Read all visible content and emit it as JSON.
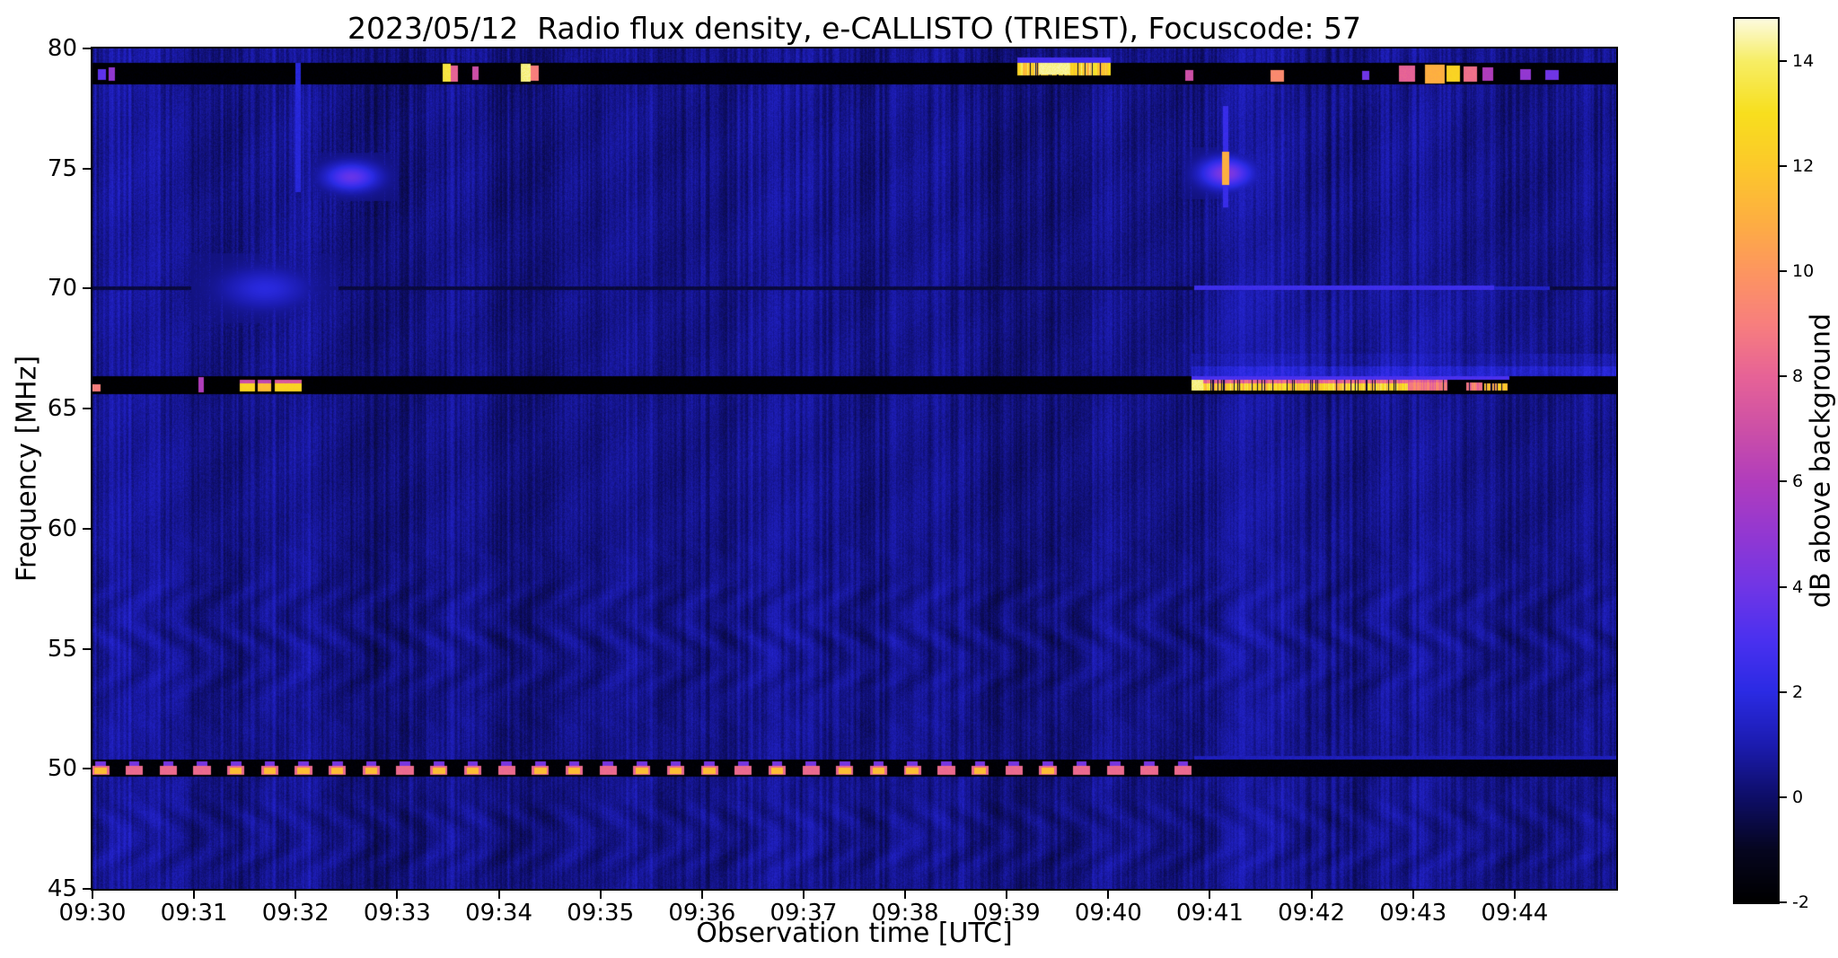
{
  "chart_data": {
    "type": "heatmap",
    "title": "2023/05/12  Radio flux density, e-CALLISTO (TRIEST), Focuscode: 57",
    "xlabel": "Observation time [UTC]",
    "ylabel": "Frequency [MHz]",
    "colorbar_label": "dB above background",
    "x_range_minutes": [
      0,
      15
    ],
    "x_tick_minutes": [
      0,
      1,
      2,
      3,
      4,
      5,
      6,
      7,
      8,
      9,
      10,
      11,
      12,
      13,
      14
    ],
    "x_tick_labels": [
      "09:30",
      "09:31",
      "09:32",
      "09:33",
      "09:34",
      "09:35",
      "09:36",
      "09:37",
      "09:38",
      "09:39",
      "09:40",
      "09:41",
      "09:42",
      "09:43",
      "09:44"
    ],
    "y_range_mhz": [
      45,
      80
    ],
    "y_tick_values": [
      45,
      50,
      55,
      60,
      65,
      70,
      75,
      80
    ],
    "y_tick_labels": [
      "45",
      "50",
      "55",
      "60",
      "65",
      "70",
      "75",
      "80"
    ],
    "colorbar_range_db": [
      -2,
      14.8
    ],
    "colorbar_tick_values": [
      -2,
      0,
      2,
      4,
      6,
      8,
      10,
      12,
      14
    ],
    "colorbar_tick_labels": [
      "-2",
      "0",
      "2",
      "4",
      "6",
      "8",
      "10",
      "12",
      "14"
    ],
    "background_level_db": 0.45,
    "colormap_stops": [
      [
        -2,
        "#000000"
      ],
      [
        -1,
        "#060620"
      ],
      [
        0,
        "#0e0e68"
      ],
      [
        1,
        "#1c1cb0"
      ],
      [
        2,
        "#2b2be4"
      ],
      [
        3,
        "#4b31f0"
      ],
      [
        4,
        "#7136e6"
      ],
      [
        5,
        "#9338d2"
      ],
      [
        6,
        "#b13dbd"
      ],
      [
        7,
        "#cd50a7"
      ],
      [
        8,
        "#e76397"
      ],
      [
        9,
        "#f87f7e"
      ],
      [
        10,
        "#fd9660"
      ],
      [
        11,
        "#feb041"
      ],
      [
        12,
        "#fcc92b"
      ],
      [
        13,
        "#f8df1e"
      ],
      [
        14,
        "#f7ee66"
      ],
      [
        14.8,
        "#fdfbe0"
      ]
    ],
    "bands": [
      {
        "f0": 78.5,
        "f1": 79.42,
        "v": -1.85,
        "name": "rfi-notch-79mhz"
      },
      {
        "f0": 69.93,
        "f1": 70.08,
        "v": -0.55,
        "name": "line-70mhz"
      },
      {
        "f0": 65.62,
        "f1": 66.34,
        "v": -1.9,
        "name": "rfi-notch-66mhz"
      },
      {
        "f0": 49.66,
        "f1": 50.38,
        "v": -1.8,
        "name": "rfi-notch-50mhz"
      }
    ],
    "regions": [
      {
        "t0": 10.82,
        "t1": 15,
        "f0": 66.34,
        "f1": 66.75,
        "v_add": 1.1
      },
      {
        "t0": 10.82,
        "t1": 15,
        "f0": 66.75,
        "f1": 67.3,
        "v_add": 0.45
      },
      {
        "t0": 10.85,
        "t1": 14.2,
        "f0": 67.3,
        "f1": 69.9,
        "v_add": 0.2
      }
    ],
    "features": [
      {
        "t0": 0.05,
        "t1": 0.13,
        "f0": 78.7,
        "f1": 79.15,
        "v": 3.5
      },
      {
        "t0": 0.16,
        "t1": 0.22,
        "f0": 78.65,
        "f1": 79.2,
        "v": 5
      },
      {
        "t0": 3.45,
        "t1": 3.53,
        "f0": 78.6,
        "f1": 79.35,
        "v": 13.5
      },
      {
        "t0": 3.53,
        "t1": 3.6,
        "f0": 78.6,
        "f1": 79.3,
        "v": 8
      },
      {
        "t0": 3.74,
        "t1": 3.8,
        "f0": 78.7,
        "f1": 79.25,
        "v": 7
      },
      {
        "t0": 4.22,
        "t1": 4.31,
        "f0": 78.6,
        "f1": 79.38,
        "v": 14.2
      },
      {
        "t0": 4.31,
        "t1": 4.39,
        "f0": 78.65,
        "f1": 79.3,
        "v": 9
      },
      {
        "t0": 9.1,
        "t1": 10.02,
        "f0": 78.88,
        "f1": 79.42,
        "v": 12.5,
        "noisy": true
      },
      {
        "t0": 9.32,
        "t1": 9.62,
        "f0": 78.92,
        "f1": 79.42,
        "v": 14.3
      },
      {
        "t0": 9.1,
        "t1": 10.02,
        "f0": 79.42,
        "f1": 79.62,
        "v": 2.8
      },
      {
        "t0": 10.76,
        "t1": 10.84,
        "f0": 78.65,
        "f1": 79.1,
        "v": 7
      },
      {
        "t0": 11.6,
        "t1": 11.73,
        "f0": 78.6,
        "f1": 79.12,
        "v": 9.5
      },
      {
        "t0": 12.5,
        "t1": 12.57,
        "f0": 78.7,
        "f1": 79.05,
        "v": 4
      },
      {
        "t0": 12.86,
        "t1": 13.02,
        "f0": 78.6,
        "f1": 79.28,
        "v": 8
      },
      {
        "t0": 13.12,
        "t1": 13.31,
        "f0": 78.55,
        "f1": 79.32,
        "v": 11
      },
      {
        "t0": 13.33,
        "t1": 13.46,
        "f0": 78.6,
        "f1": 79.3,
        "v": 12.5
      },
      {
        "t0": 13.5,
        "t1": 13.63,
        "f0": 78.6,
        "f1": 79.25,
        "v": 8.5
      },
      {
        "t0": 13.68,
        "t1": 13.79,
        "f0": 78.65,
        "f1": 79.2,
        "v": 6
      },
      {
        "t0": 14.05,
        "t1": 14.16,
        "f0": 78.7,
        "f1": 79.15,
        "v": 5
      },
      {
        "t0": 14.3,
        "t1": 14.43,
        "f0": 78.7,
        "f1": 79.1,
        "v": 4
      },
      {
        "t0": 2.0,
        "t1": 2.05,
        "f0": 74.0,
        "f1": 79.4,
        "v": 1.8
      },
      {
        "t0": 2.3,
        "t1": 2.8,
        "f0": 74.1,
        "f1": 75.2,
        "v": 3.4,
        "soft": true
      },
      {
        "t0": 1.3,
        "t1": 2.1,
        "f0": 69.2,
        "f1": 70.8,
        "v": 1.6,
        "soft": true
      },
      {
        "t0": 10.92,
        "t1": 11.4,
        "f0": 74.2,
        "f1": 75.4,
        "v": 4.2,
        "soft": true
      },
      {
        "t0": 11.13,
        "t1": 11.18,
        "f0": 73.4,
        "f1": 77.6,
        "v": 2.4
      },
      {
        "t0": 11.12,
        "t1": 11.19,
        "f0": 74.3,
        "f1": 75.7,
        "v": 11
      },
      {
        "t0": 10.85,
        "t1": 13.8,
        "f0": 69.93,
        "f1": 70.14,
        "v": 2.6
      },
      {
        "t0": 13.8,
        "t1": 14.35,
        "f0": 69.95,
        "f1": 70.1,
        "v": 1.4
      },
      {
        "t0": 0.0,
        "t1": 0.08,
        "f0": 65.7,
        "f1": 66.0,
        "v": 9
      },
      {
        "t0": 1.04,
        "t1": 1.1,
        "f0": 65.68,
        "f1": 66.3,
        "v": 6
      },
      {
        "t0": 1.45,
        "t1": 1.6,
        "f0": 65.7,
        "f1": 66.06,
        "v": 12.5
      },
      {
        "t0": 1.45,
        "t1": 1.6,
        "f0": 66.06,
        "f1": 66.22,
        "v": 7
      },
      {
        "t0": 1.63,
        "t1": 1.76,
        "f0": 65.7,
        "f1": 66.06,
        "v": 11.5
      },
      {
        "t0": 1.63,
        "t1": 1.76,
        "f0": 66.06,
        "f1": 66.2,
        "v": 6.5
      },
      {
        "t0": 1.79,
        "t1": 2.06,
        "f0": 65.7,
        "f1": 66.06,
        "v": 12.5
      },
      {
        "t0": 1.79,
        "t1": 2.06,
        "f0": 66.06,
        "f1": 66.22,
        "v": 7.5
      },
      {
        "t0": 10.82,
        "t1": 13.34,
        "f0": 65.74,
        "f1": 66.06,
        "v": 12.4,
        "noisy": true
      },
      {
        "t0": 10.82,
        "t1": 13.34,
        "f0": 66.06,
        "f1": 66.2,
        "v": 8,
        "noisy": true
      },
      {
        "t0": 10.82,
        "t1": 13.95,
        "f0": 66.2,
        "f1": 66.34,
        "v": 3
      },
      {
        "t0": 10.82,
        "t1": 10.93,
        "f0": 65.74,
        "f1": 66.2,
        "v": 14.2
      },
      {
        "t0": 12.95,
        "t1": 13.34,
        "f0": 65.74,
        "f1": 66.1,
        "v": 9,
        "noisy": true
      },
      {
        "t0": 13.52,
        "t1": 13.68,
        "f0": 65.74,
        "f1": 66.1,
        "v": 9,
        "noisy": true
      },
      {
        "t0": 13.7,
        "t1": 13.93,
        "f0": 65.74,
        "f1": 66.06,
        "v": 11.5,
        "noisy": true
      },
      {
        "t0": 10.85,
        "t1": 15.0,
        "f0": 50.38,
        "f1": 50.52,
        "v": 1.2
      }
    ],
    "periodic_bursts_50mhz": {
      "start": 0.08,
      "end": 10.84,
      "period": 0.333,
      "width": 0.17,
      "body": {
        "f0": 49.74,
        "f1": 50.12,
        "v": 8.3
      },
      "core": {
        "f0": 49.78,
        "f1": 50.04,
        "v": 11.6
      },
      "core_probability": 0.5,
      "tip": {
        "f0": 50.12,
        "f1": 50.3,
        "v": 4.2
      }
    }
  }
}
